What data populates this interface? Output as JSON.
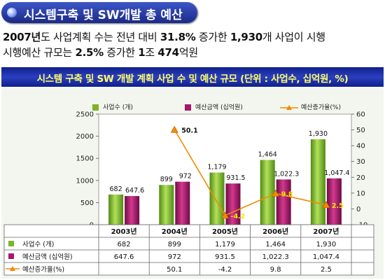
{
  "header": {
    "title": "시스템구축 및 SW개발 총 예산"
  },
  "description": {
    "l1_a": "2007년",
    "l1_b": "도 사업계획 수는 전년 대비 ",
    "l1_c": "31.8%",
    "l1_d": " 증가한 ",
    "l1_e": "1,930",
    "l1_f": "개 사업이 시행",
    "l2_a": "시행예산 규모는 ",
    "l2_b": "2.5%",
    "l2_c": " 증가한  ",
    "l2_d": "1",
    "l2_e": "조 ",
    "l2_f": "474",
    "l2_g": "억원"
  },
  "colors": {
    "count": "#7ab52a",
    "budget": "#a8186a",
    "rate": "#f28a00"
  },
  "chart_data": {
    "type": "bar",
    "title": "시스템 구축 및 SW 개발 계획 사업 수 및 예산 규모 (단위 : 사업수, 십억원, %)",
    "categories": [
      "2003년",
      "2004년",
      "2005년",
      "2006년",
      "2007년"
    ],
    "series": [
      {
        "name": "사업수 (개)",
        "axis": "left",
        "values": [
          682,
          899,
          1179,
          1464,
          1930
        ],
        "labels": [
          "682",
          "899",
          "1,179",
          "1,464",
          "1,930"
        ]
      },
      {
        "name": "예산금액 (십억원)",
        "axis": "left",
        "values": [
          647.6,
          972,
          931.5,
          1022.3,
          1047.4
        ],
        "labels": [
          "647.6",
          "972",
          "931.5",
          "1,022.3",
          "1,047.4"
        ]
      },
      {
        "name": "예산증가율(%)",
        "axis": "right",
        "type": "line",
        "values": [
          null,
          50.1,
          -4.2,
          9.8,
          2.5
        ],
        "labels": [
          "",
          "50.1",
          "-4.2",
          "9.8",
          "2.5"
        ]
      }
    ],
    "left_axis": {
      "ylim": [
        0,
        2500
      ],
      "ticks": [
        "0",
        "500",
        "1000",
        "1500",
        "2000",
        "2500"
      ]
    },
    "right_axis": {
      "ylim": [
        -10,
        60
      ],
      "ticks": [
        "-10",
        "0",
        "10",
        "20",
        "30",
        "40",
        "50",
        "60"
      ]
    },
    "legend": "top",
    "table": {
      "row_labels": [
        "사업수 (개)",
        "예산금액 (십억원)",
        "예산증가율(%)"
      ],
      "rows": [
        [
          "682",
          "899",
          "1,179",
          "1,464",
          "1,930"
        ],
        [
          "647.6",
          "972",
          "931.5",
          "1,022.3",
          "1,047.4"
        ],
        [
          "",
          "50.1",
          "-4.2",
          "9.8",
          "2.5"
        ]
      ]
    }
  }
}
